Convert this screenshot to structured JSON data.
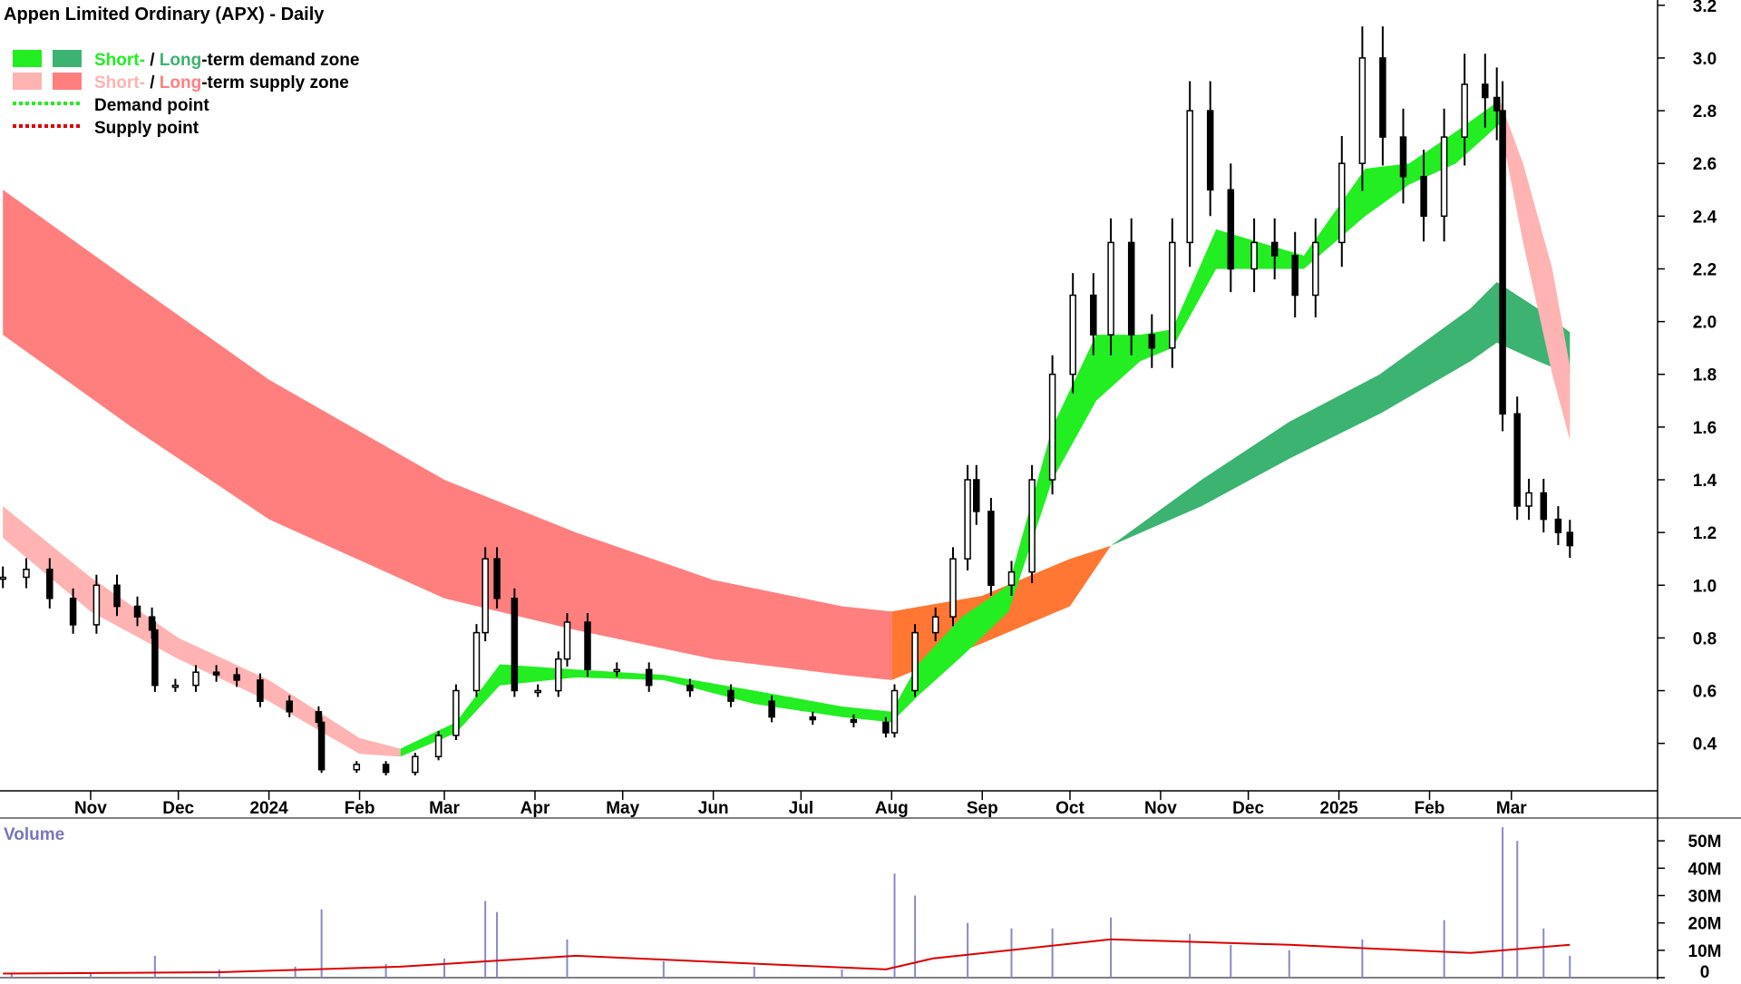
{
  "chart_data": {
    "type": "candlestick",
    "title": "Appen Limited Ordinary (APX) - Daily",
    "colors": {
      "short_demand": "#22ee22",
      "long_demand": "#3cb371",
      "short_supply": "#ffb3b3",
      "long_supply": "#ff7f7f",
      "transition_zone": "#ff7733",
      "demand_point": "#22ee22",
      "supply_point": "#dd0000",
      "volume_bar": "#8888cc",
      "volume_average": "#dd0000"
    },
    "legend": [
      {
        "parts": [
          {
            "text": "Short-",
            "color": "#22ee22"
          },
          {
            "text": " / ",
            "color": "#000000"
          },
          {
            "text": "Long",
            "color": "#3cb371"
          },
          {
            "text": "-term demand zone",
            "color": "#000000"
          }
        ],
        "swatches": [
          "#22ee22",
          "#3cb371"
        ]
      },
      {
        "parts": [
          {
            "text": "Short-",
            "color": "#ffb3b3"
          },
          {
            "text": " / ",
            "color": "#000000"
          },
          {
            "text": "Long",
            "color": "#ff7f7f"
          },
          {
            "text": "-term supply zone",
            "color": "#000000"
          }
        ],
        "swatches": [
          "#ffb3b3",
          "#ff7f7f"
        ]
      },
      {
        "parts": [
          {
            "text": "Demand point",
            "color": "#000000"
          }
        ],
        "line_color": "#22ee22"
      },
      {
        "parts": [
          {
            "text": "Supply point",
            "color": "#000000"
          }
        ],
        "line_color": "#dd0000"
      }
    ],
    "y_ticks": [
      "3.2",
      "3.0",
      "2.8",
      "2.6",
      "2.4",
      "2.2",
      "2.0",
      "1.8",
      "1.6",
      "1.4",
      "1.2",
      "1.0",
      "0.8",
      "0.6",
      "0.4"
    ],
    "ylim": [
      0.22,
      3.22
    ],
    "x_months": [
      "Nov",
      "Dec",
      "2024",
      "Feb",
      "Mar",
      "Apr",
      "May",
      "Jun",
      "Jul",
      "Aug",
      "Sep",
      "Oct",
      "Nov",
      "Dec",
      "2025",
      "Feb",
      "Mar"
    ],
    "x_range": [
      "2023-10-01",
      "2025-04-20"
    ],
    "month_dates": [
      "2023-11-01",
      "2023-12-01",
      "2024-01-01",
      "2024-02-01",
      "2024-03-01",
      "2024-04-01",
      "2024-05-01",
      "2024-06-01",
      "2024-07-01",
      "2024-08-01",
      "2024-09-01",
      "2024-10-01",
      "2024-11-01",
      "2024-12-01",
      "2025-01-01",
      "2025-02-01",
      "2025-03-01"
    ],
    "price_series": {
      "name": "Close",
      "points": [
        [
          "2023-10-02",
          1.03
        ],
        [
          "2023-10-10",
          1.06
        ],
        [
          "2023-10-18",
          0.95
        ],
        [
          "2023-10-26",
          0.85
        ],
        [
          "2023-11-03",
          1.0
        ],
        [
          "2023-11-10",
          0.92
        ],
        [
          "2023-11-17",
          0.88
        ],
        [
          "2023-11-22",
          0.83
        ],
        [
          "2023-11-23",
          0.62
        ],
        [
          "2023-11-30",
          0.62
        ],
        [
          "2023-12-07",
          0.67
        ],
        [
          "2023-12-14",
          0.66
        ],
        [
          "2023-12-21",
          0.64
        ],
        [
          "2023-12-29",
          0.56
        ],
        [
          "2024-01-08",
          0.52
        ],
        [
          "2024-01-18",
          0.48
        ],
        [
          "2024-01-19",
          0.3
        ],
        [
          "2024-01-31",
          0.32
        ],
        [
          "2024-02-10",
          0.29
        ],
        [
          "2024-02-20",
          0.35
        ],
        [
          "2024-02-28",
          0.43
        ],
        [
          "2024-03-05",
          0.6
        ],
        [
          "2024-03-12",
          0.82
        ],
        [
          "2024-03-15",
          1.1
        ],
        [
          "2024-03-19",
          0.95
        ],
        [
          "2024-03-25",
          0.6
        ],
        [
          "2024-04-02",
          0.6
        ],
        [
          "2024-04-09",
          0.72
        ],
        [
          "2024-04-12",
          0.86
        ],
        [
          "2024-04-19",
          0.68
        ],
        [
          "2024-04-29",
          0.68
        ],
        [
          "2024-05-10",
          0.62
        ],
        [
          "2024-05-24",
          0.6
        ],
        [
          "2024-06-07",
          0.56
        ],
        [
          "2024-06-21",
          0.5
        ],
        [
          "2024-07-05",
          0.49
        ],
        [
          "2024-07-19",
          0.48
        ],
        [
          "2024-07-30",
          0.44
        ],
        [
          "2024-08-02",
          0.6
        ],
        [
          "2024-08-09",
          0.82
        ],
        [
          "2024-08-16",
          0.88
        ],
        [
          "2024-08-22",
          1.1
        ],
        [
          "2024-08-27",
          1.4
        ],
        [
          "2024-08-30",
          1.28
        ],
        [
          "2024-09-04",
          1.0
        ],
        [
          "2024-09-11",
          1.05
        ],
        [
          "2024-09-18",
          1.4
        ],
        [
          "2024-09-25",
          1.8
        ],
        [
          "2024-10-02",
          2.1
        ],
        [
          "2024-10-09",
          1.95
        ],
        [
          "2024-10-15",
          2.3
        ],
        [
          "2024-10-22",
          1.95
        ],
        [
          "2024-10-29",
          1.9
        ],
        [
          "2024-11-05",
          2.3
        ],
        [
          "2024-11-11",
          2.8
        ],
        [
          "2024-11-18",
          2.5
        ],
        [
          "2024-11-25",
          2.2
        ],
        [
          "2024-12-03",
          2.3
        ],
        [
          "2024-12-10",
          2.25
        ],
        [
          "2024-12-17",
          2.1
        ],
        [
          "2024-12-24",
          2.3
        ],
        [
          "2025-01-02",
          2.6
        ],
        [
          "2025-01-09",
          3.0
        ],
        [
          "2025-01-16",
          2.7
        ],
        [
          "2025-01-23",
          2.55
        ],
        [
          "2025-01-30",
          2.4
        ],
        [
          "2025-02-06",
          2.7
        ],
        [
          "2025-02-13",
          2.9
        ],
        [
          "2025-02-20",
          2.85
        ],
        [
          "2025-02-24",
          2.8
        ],
        [
          "2025-02-26",
          1.65
        ],
        [
          "2025-03-03",
          1.3
        ],
        [
          "2025-03-07",
          1.35
        ],
        [
          "2025-03-12",
          1.25
        ],
        [
          "2025-03-17",
          1.2
        ],
        [
          "2025-03-21",
          1.15
        ]
      ]
    },
    "zones": {
      "short_term": [
        [
          "2023-10-02",
          1.18,
          1.3
        ],
        [
          "2023-11-01",
          0.9,
          1.03
        ],
        [
          "2023-12-01",
          0.72,
          0.8
        ],
        [
          "2024-01-01",
          0.56,
          0.64
        ],
        [
          "2024-02-01",
          0.36,
          0.42
        ],
        [
          "2024-02-15",
          0.35,
          0.38
        ],
        [
          "2024-03-05",
          0.44,
          0.48
        ],
        [
          "2024-03-20",
          0.62,
          0.7
        ],
        [
          "2024-04-15",
          0.65,
          0.68
        ],
        [
          "2024-05-15",
          0.64,
          0.66
        ],
        [
          "2024-06-15",
          0.55,
          0.6
        ],
        [
          "2024-07-15",
          0.5,
          0.54
        ],
        [
          "2024-08-01",
          0.48,
          0.52
        ],
        [
          "2024-08-10",
          0.58,
          0.7
        ],
        [
          "2024-08-25",
          0.73,
          0.88
        ],
        [
          "2024-09-10",
          0.9,
          1.0
        ],
        [
          "2024-09-25",
          1.4,
          1.6
        ],
        [
          "2024-10-10",
          1.7,
          1.95
        ],
        [
          "2024-10-25",
          1.85,
          1.95
        ],
        [
          "2024-11-05",
          1.9,
          1.97
        ],
        [
          "2024-11-20",
          2.2,
          2.35
        ],
        [
          "2024-12-05",
          2.2,
          2.3
        ],
        [
          "2024-12-20",
          2.2,
          2.25
        ],
        [
          "2025-01-10",
          2.4,
          2.58
        ],
        [
          "2025-01-25",
          2.52,
          2.6
        ],
        [
          "2025-02-10",
          2.6,
          2.72
        ],
        [
          "2025-02-25",
          2.75,
          2.84
        ],
        [
          "2025-03-05",
          2.3,
          2.6
        ],
        [
          "2025-03-15",
          1.8,
          2.2
        ],
        [
          "2025-03-21",
          1.55,
          1.83
        ]
      ],
      "long_term": [
        [
          "2023-10-02",
          1.95,
          2.5
        ],
        [
          "2023-11-15",
          1.6,
          2.15
        ],
        [
          "2024-01-01",
          1.25,
          1.78
        ],
        [
          "2024-03-01",
          0.95,
          1.4
        ],
        [
          "2024-04-15",
          0.83,
          1.2
        ],
        [
          "2024-06-01",
          0.72,
          1.02
        ],
        [
          "2024-07-15",
          0.66,
          0.92
        ],
        [
          "2024-08-01",
          0.64,
          0.9
        ],
        [
          "2024-09-01",
          0.78,
          0.96
        ],
        [
          "2024-10-01",
          0.92,
          1.1
        ],
        [
          "2024-10-15",
          1.15,
          1.15
        ],
        [
          "2024-11-15",
          1.3,
          1.4
        ],
        [
          "2024-12-15",
          1.48,
          1.62
        ],
        [
          "2025-01-15",
          1.65,
          1.8
        ],
        [
          "2025-02-15",
          1.85,
          2.05
        ],
        [
          "2025-02-24",
          1.92,
          2.15
        ],
        [
          "2025-03-10",
          1.85,
          2.05
        ],
        [
          "2025-03-21",
          1.8,
          1.96
        ]
      ]
    },
    "volume": {
      "title": "Volume",
      "y_ticks": [
        "50M",
        "40M",
        "30M",
        "20M",
        "10M",
        "0"
      ],
      "ylim": [
        0,
        58
      ],
      "bars": [
        [
          "2023-10-05",
          1.5
        ],
        [
          "2023-11-01",
          1.8
        ],
        [
          "2023-11-23",
          8.0
        ],
        [
          "2023-12-15",
          3.0
        ],
        [
          "2024-01-10",
          4.0
        ],
        [
          "2024-01-19",
          25.0
        ],
        [
          "2024-02-10",
          5.0
        ],
        [
          "2024-03-01",
          7.0
        ],
        [
          "2024-03-15",
          28.0
        ],
        [
          "2024-03-19",
          24.0
        ],
        [
          "2024-04-12",
          14.0
        ],
        [
          "2024-05-15",
          6.0
        ],
        [
          "2024-06-15",
          4.0
        ],
        [
          "2024-07-15",
          3.0
        ],
        [
          "2024-08-02",
          38.0
        ],
        [
          "2024-08-09",
          30.0
        ],
        [
          "2024-08-27",
          20.0
        ],
        [
          "2024-09-11",
          18.0
        ],
        [
          "2024-09-25",
          18.0
        ],
        [
          "2024-10-15",
          22.0
        ],
        [
          "2024-11-11",
          16.0
        ],
        [
          "2024-11-25",
          12.0
        ],
        [
          "2024-12-15",
          10.0
        ],
        [
          "2025-01-09",
          14.0
        ],
        [
          "2025-02-06",
          21.0
        ],
        [
          "2025-02-26",
          55.0
        ],
        [
          "2025-03-03",
          50.0
        ],
        [
          "2025-03-12",
          18.0
        ],
        [
          "2025-03-21",
          8.0
        ]
      ],
      "average": [
        [
          "2023-10-02",
          1.5
        ],
        [
          "2023-12-15",
          2.0
        ],
        [
          "2024-02-15",
          4.0
        ],
        [
          "2024-04-15",
          8.0
        ],
        [
          "2024-07-30",
          3.0
        ],
        [
          "2024-08-15",
          7.0
        ],
        [
          "2024-10-15",
          14.0
        ],
        [
          "2024-12-15",
          12.0
        ],
        [
          "2025-02-15",
          9.0
        ],
        [
          "2025-03-21",
          12.0
        ]
      ]
    }
  }
}
